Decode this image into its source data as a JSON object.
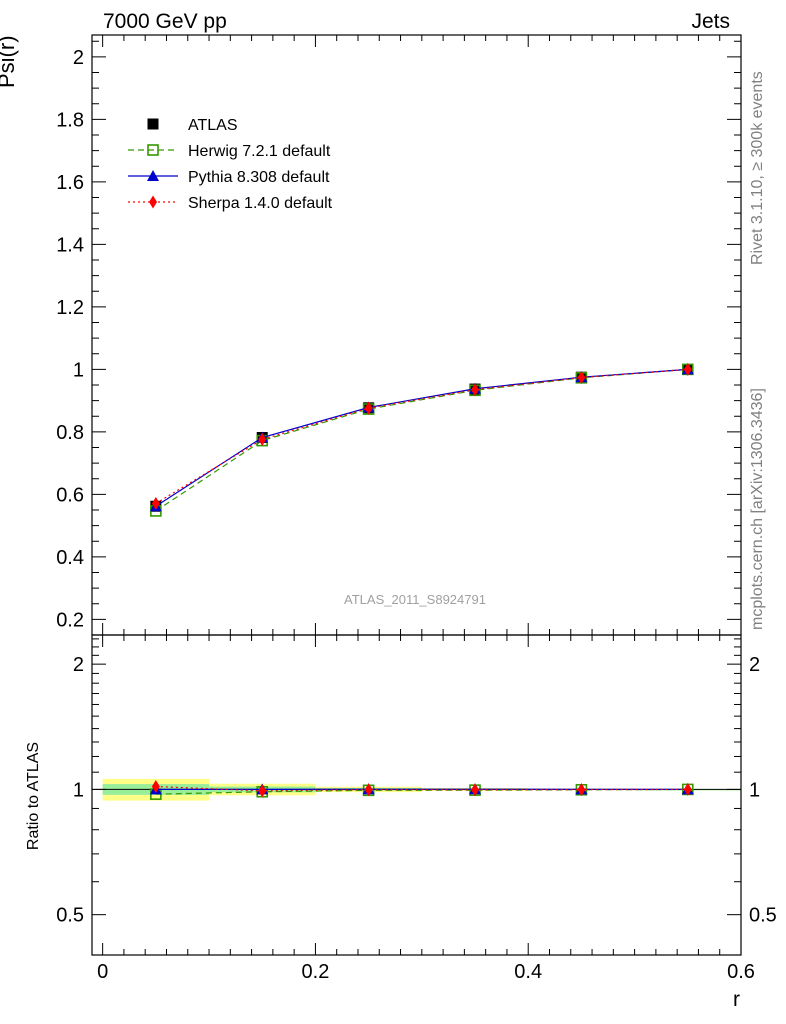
{
  "header": {
    "left": "7000 GeV pp",
    "right": "Jets"
  },
  "side_texts": {
    "rivet": "Rivet 3.1.10, ≥ 300k events",
    "mcplots": "mcplots.cern.ch [arXiv:1306.3436]"
  },
  "watermark": "ATLAS_2011_S8924791",
  "chart_data": [
    {
      "type": "line",
      "panel": "main",
      "ylabel": "Psi(r)",
      "xlabel": "r",
      "xlim": [
        -0.01,
        0.6
      ],
      "ylim": [
        0.15,
        2.07
      ],
      "y_ticks": [
        0.2,
        0.4,
        0.6,
        0.8,
        1,
        1.2,
        1.4,
        1.6,
        1.8,
        2
      ],
      "y_tick_labels": [
        "0.2",
        "0.4",
        "0.6",
        "0.8",
        "1",
        "1.2",
        "1.4",
        "1.6",
        "1.8",
        "2"
      ],
      "x": [
        0.05,
        0.15,
        0.25,
        0.35,
        0.45,
        0.55
      ],
      "series": [
        {
          "name": "ATLAS",
          "style": "data",
          "color": "#000000",
          "marker": "square-filled",
          "values": [
            0.562,
            0.782,
            0.877,
            0.937,
            0.975,
            1.0
          ]
        },
        {
          "name": "Herwig 7.2.1 default",
          "style": "dashed",
          "color": "#339900",
          "marker": "square-open",
          "values": [
            0.547,
            0.772,
            0.873,
            0.933,
            0.973,
            1.0
          ]
        },
        {
          "name": "Pythia 8.308 default",
          "style": "solid",
          "color": "#0000cc",
          "marker": "triangle",
          "values": [
            0.562,
            0.782,
            0.878,
            0.938,
            0.975,
            1.0
          ]
        },
        {
          "name": "Sherpa 1.4.0 default",
          "style": "dotted",
          "color": "#ff0000",
          "marker": "diamond",
          "values": [
            0.571,
            0.776,
            0.876,
            0.935,
            0.974,
            1.0
          ]
        }
      ]
    },
    {
      "type": "line",
      "panel": "ratio",
      "ylabel": "Ratio to ATLAS",
      "xlabel": "r",
      "xlim": [
        -0.01,
        0.6
      ],
      "ylim": [
        0.4,
        2.35
      ],
      "y_scale": "log",
      "y_ticks": [
        0.5,
        1,
        2
      ],
      "y_tick_labels": [
        "0.5",
        "1",
        "2"
      ],
      "x_ticks": [
        0,
        0.2,
        0.4,
        0.6
      ],
      "x_tick_labels": [
        "0",
        "0.2",
        "0.4",
        "0.6"
      ],
      "x": [
        0.05,
        0.15,
        0.25,
        0.35,
        0.45,
        0.55
      ],
      "bands": [
        {
          "name": "stat",
          "color": "#99ee99",
          "lo": [
            0.97,
            0.984,
            0.993,
            0.996,
            0.998,
            1.0
          ],
          "hi": [
            1.03,
            1.016,
            1.007,
            1.004,
            1.002,
            1.0
          ]
        },
        {
          "name": "total",
          "color": "#ffff88",
          "lo": [
            0.94,
            0.968,
            0.985,
            0.992,
            0.996,
            1.0
          ],
          "hi": [
            1.06,
            1.032,
            1.015,
            1.008,
            1.004,
            1.0
          ]
        }
      ],
      "series": [
        {
          "name": "Herwig 7.2.1 default",
          "style": "dashed",
          "color": "#339900",
          "marker": "square-open",
          "values": [
            0.974,
            0.987,
            0.995,
            0.996,
            0.998,
            1.0
          ]
        },
        {
          "name": "Pythia 8.308 default",
          "style": "solid",
          "color": "#0000cc",
          "marker": "triangle",
          "values": [
            1.0,
            1.0,
            1.001,
            1.001,
            1.0,
            1.0
          ]
        },
        {
          "name": "Sherpa 1.4.0 default",
          "style": "dotted",
          "color": "#ff0000",
          "marker": "diamond",
          "values": [
            1.016,
            0.992,
            0.999,
            0.998,
            0.999,
            1.0
          ]
        }
      ]
    }
  ]
}
